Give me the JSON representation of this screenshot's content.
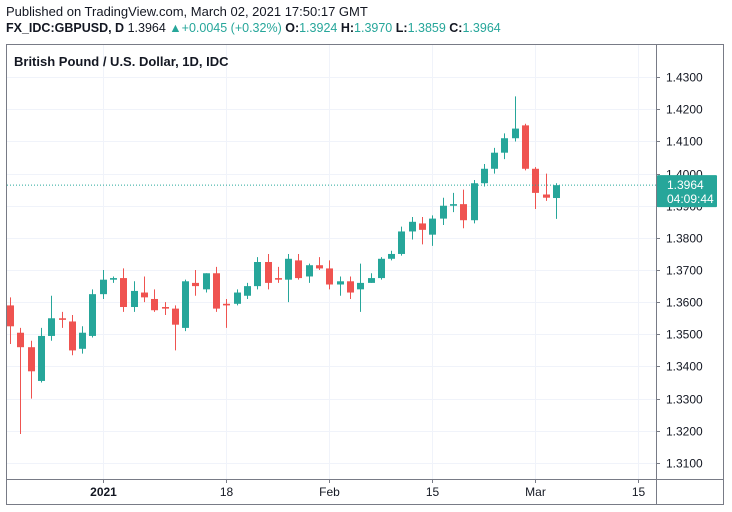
{
  "header": {
    "published": "Published on TradingView.com, March 02, 2021 17:50:17 GMT",
    "symbol": "FX_IDC:GBPUSD, D",
    "last": "1.3964",
    "change_arrow": "▲",
    "change": "+0.0045 (+0.32%)",
    "o_label": "O:",
    "o_value": "1.3924",
    "h_label": "H:",
    "h_value": "1.3970",
    "l_label": "L:",
    "l_value": "1.3859",
    "c_label": "C:",
    "c_value": "1.3964"
  },
  "chart_data": {
    "type": "candlestick",
    "title": "British Pound / U.S. Dollar, 1D, IDC",
    "ylim": [
      1.305,
      1.44
    ],
    "y_ticks": [
      "1.4300",
      "1.4200",
      "1.4100",
      "1.4000",
      "1.3900",
      "1.3800",
      "1.3700",
      "1.3600",
      "1.3500",
      "1.3400",
      "1.3300",
      "1.3200",
      "1.3100"
    ],
    "x_ticks": [
      {
        "label": "2021",
        "index": 9,
        "bold": true
      },
      {
        "label": "18",
        "index": 21,
        "bold": false
      },
      {
        "label": "Feb",
        "index": 31,
        "bold": false
      },
      {
        "label": "15",
        "index": 41,
        "bold": false
      },
      {
        "label": "Mar",
        "index": 51,
        "bold": false
      },
      {
        "label": "15",
        "index": 61,
        "bold": false
      }
    ],
    "current_price": {
      "value": 1.3964,
      "label": "1.3964",
      "countdown": "04:09:44"
    },
    "colors": {
      "up": "#26a69a",
      "down": "#ef5350",
      "grid": "#f0f3fa",
      "axis": "#131722"
    },
    "candles": [
      {
        "o": 1.359,
        "h": 1.3615,
        "l": 1.347,
        "c": 1.3525
      },
      {
        "o": 1.3505,
        "h": 1.352,
        "l": 1.319,
        "c": 1.346
      },
      {
        "o": 1.346,
        "h": 1.348,
        "l": 1.33,
        "c": 1.3385
      },
      {
        "o": 1.3355,
        "h": 1.352,
        "l": 1.335,
        "c": 1.3495
      },
      {
        "o": 1.3495,
        "h": 1.362,
        "l": 1.348,
        "c": 1.355
      },
      {
        "o": 1.355,
        "h": 1.357,
        "l": 1.352,
        "c": 1.3545
      },
      {
        "o": 1.354,
        "h": 1.356,
        "l": 1.3435,
        "c": 1.345
      },
      {
        "o": 1.3455,
        "h": 1.3525,
        "l": 1.344,
        "c": 1.3505
      },
      {
        "o": 1.3495,
        "h": 1.364,
        "l": 1.349,
        "c": 1.3625
      },
      {
        "o": 1.3625,
        "h": 1.37,
        "l": 1.361,
        "c": 1.367
      },
      {
        "o": 1.367,
        "h": 1.368,
        "l": 1.366,
        "c": 1.3675
      },
      {
        "o": 1.3675,
        "h": 1.3705,
        "l": 1.357,
        "c": 1.3585
      },
      {
        "o": 1.3585,
        "h": 1.3665,
        "l": 1.357,
        "c": 1.3635
      },
      {
        "o": 1.363,
        "h": 1.368,
        "l": 1.36,
        "c": 1.3615
      },
      {
        "o": 1.361,
        "h": 1.364,
        "l": 1.357,
        "c": 1.3575
      },
      {
        "o": 1.3585,
        "h": 1.36,
        "l": 1.356,
        "c": 1.358
      },
      {
        "o": 1.358,
        "h": 1.359,
        "l": 1.345,
        "c": 1.353
      },
      {
        "o": 1.352,
        "h": 1.367,
        "l": 1.351,
        "c": 1.3665
      },
      {
        "o": 1.366,
        "h": 1.37,
        "l": 1.362,
        "c": 1.365
      },
      {
        "o": 1.364,
        "h": 1.369,
        "l": 1.363,
        "c": 1.369
      },
      {
        "o": 1.369,
        "h": 1.371,
        "l": 1.357,
        "c": 1.358
      },
      {
        "o": 1.3595,
        "h": 1.361,
        "l": 1.352,
        "c": 1.359
      },
      {
        "o": 1.3595,
        "h": 1.364,
        "l": 1.359,
        "c": 1.363
      },
      {
        "o": 1.362,
        "h": 1.366,
        "l": 1.361,
        "c": 1.365
      },
      {
        "o": 1.365,
        "h": 1.374,
        "l": 1.364,
        "c": 1.3725
      },
      {
        "o": 1.3725,
        "h": 1.375,
        "l": 1.364,
        "c": 1.366
      },
      {
        "o": 1.3675,
        "h": 1.371,
        "l": 1.366,
        "c": 1.367
      },
      {
        "o": 1.367,
        "h": 1.375,
        "l": 1.36,
        "c": 1.3735
      },
      {
        "o": 1.373,
        "h": 1.375,
        "l": 1.367,
        "c": 1.3675
      },
      {
        "o": 1.368,
        "h": 1.372,
        "l": 1.366,
        "c": 1.3715
      },
      {
        "o": 1.3715,
        "h": 1.374,
        "l": 1.37,
        "c": 1.3705
      },
      {
        "o": 1.3705,
        "h": 1.373,
        "l": 1.364,
        "c": 1.3655
      },
      {
        "o": 1.3655,
        "h": 1.368,
        "l": 1.362,
        "c": 1.3665
      },
      {
        "o": 1.3665,
        "h": 1.368,
        "l": 1.361,
        "c": 1.363
      },
      {
        "o": 1.364,
        "h": 1.372,
        "l": 1.357,
        "c": 1.366
      },
      {
        "o": 1.366,
        "h": 1.369,
        "l": 1.366,
        "c": 1.3675
      },
      {
        "o": 1.3675,
        "h": 1.374,
        "l": 1.367,
        "c": 1.3735
      },
      {
        "o": 1.3735,
        "h": 1.376,
        "l": 1.373,
        "c": 1.375
      },
      {
        "o": 1.375,
        "h": 1.3835,
        "l": 1.3745,
        "c": 1.382
      },
      {
        "o": 1.382,
        "h": 1.3865,
        "l": 1.3795,
        "c": 1.385
      },
      {
        "o": 1.3845,
        "h": 1.3865,
        "l": 1.378,
        "c": 1.3825
      },
      {
        "o": 1.381,
        "h": 1.387,
        "l": 1.3775,
        "c": 1.386
      },
      {
        "o": 1.386,
        "h": 1.3925,
        "l": 1.384,
        "c": 1.39
      },
      {
        "o": 1.39,
        "h": 1.394,
        "l": 1.388,
        "c": 1.3905
      },
      {
        "o": 1.3905,
        "h": 1.395,
        "l": 1.383,
        "c": 1.3855
      },
      {
        "o": 1.3855,
        "h": 1.398,
        "l": 1.3845,
        "c": 1.397
      },
      {
        "o": 1.397,
        "h": 1.403,
        "l": 1.396,
        "c": 1.4015
      },
      {
        "o": 1.4015,
        "h": 1.408,
        "l": 1.4,
        "c": 1.4065
      },
      {
        "o": 1.4065,
        "h": 1.4125,
        "l": 1.4045,
        "c": 1.411
      },
      {
        "o": 1.411,
        "h": 1.424,
        "l": 1.41,
        "c": 1.414
      },
      {
        "o": 1.415,
        "h": 1.4155,
        "l": 1.401,
        "c": 1.4015
      },
      {
        "o": 1.4015,
        "h": 1.402,
        "l": 1.389,
        "c": 1.394
      },
      {
        "o": 1.3935,
        "h": 1.4,
        "l": 1.3915,
        "c": 1.3925
      },
      {
        "o": 1.3924,
        "h": 1.397,
        "l": 1.3859,
        "c": 1.3964
      }
    ]
  }
}
